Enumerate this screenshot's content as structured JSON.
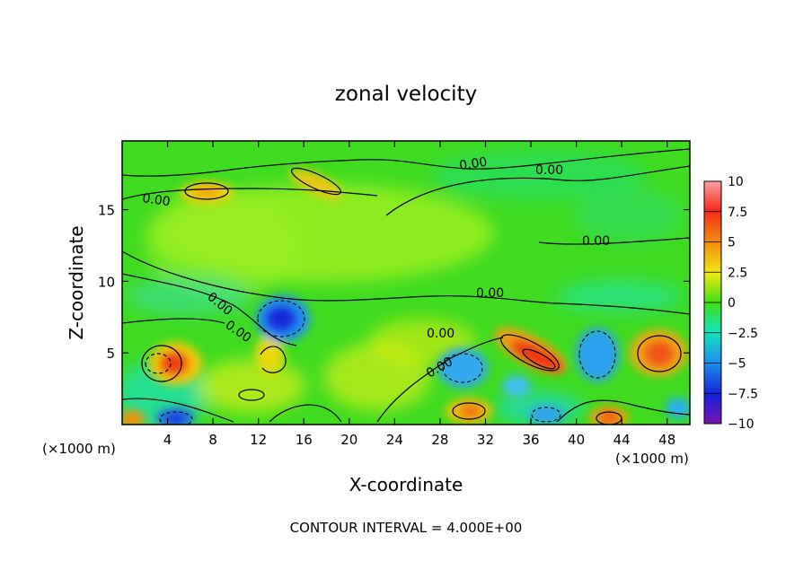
{
  "chart_data": {
    "type": "heatmap",
    "title": "zonal velocity",
    "xlabel": "X-coordinate",
    "ylabel": "Z-coordinate",
    "x_unit": "(×1000 m)",
    "y_unit": "(×1000 m)",
    "xlim": [
      0,
      50
    ],
    "ylim": [
      0,
      19.8
    ],
    "xticks": [
      "4",
      "8",
      "12",
      "16",
      "20",
      "24",
      "28",
      "32",
      "36",
      "40",
      "44",
      "48"
    ],
    "xtick_values": [
      4,
      8,
      12,
      16,
      20,
      24,
      28,
      32,
      36,
      40,
      44,
      48
    ],
    "yticks": [
      "5",
      "10",
      "15"
    ],
    "ytick_values": [
      5,
      10,
      15
    ],
    "colorbar": {
      "ticks": [
        "10",
        "7.5",
        "5",
        "2.5",
        "0",
        "−2.5",
        "−5",
        "−7.5",
        "−10"
      ],
      "tick_values": [
        10,
        7.5,
        5,
        2.5,
        0,
        -2.5,
        -5,
        -7.5,
        -10
      ],
      "range": [
        -10,
        10
      ]
    },
    "contour_labels": [
      "0.00",
      "0.00",
      "0.00",
      "0.00",
      "0.00",
      "0.00",
      "0.00",
      "0.00",
      "0.00"
    ],
    "footnote": "CONTOUR INTERVAL = 4.000E+00",
    "features": [
      {
        "x": 4.5,
        "z": 4.5,
        "value": 8
      },
      {
        "x": 14,
        "z": 7.5,
        "value": -8
      },
      {
        "x": 37.5,
        "z": 4.4,
        "value": 9
      },
      {
        "x": 46.5,
        "z": 4.8,
        "value": 7
      },
      {
        "x": 30.5,
        "z": 1,
        "value": 6
      },
      {
        "x": 43,
        "z": 0.6,
        "value": 6
      },
      {
        "x": 0.8,
        "z": 0.5,
        "value": 6
      },
      {
        "x": 7,
        "z": 16.5,
        "value": 4
      },
      {
        "x": 18.5,
        "z": 17.2,
        "value": 4
      },
      {
        "x": 4.5,
        "z": 0.6,
        "value": -7
      },
      {
        "x": 29.5,
        "z": 3.2,
        "value": -5
      },
      {
        "x": 41.5,
        "z": 4.5,
        "value": -5
      },
      {
        "x": 20,
        "z": 13,
        "value": 2.5
      },
      {
        "x": 34,
        "z": 17,
        "value": -1
      }
    ],
    "grid": false,
    "legend": "right"
  }
}
